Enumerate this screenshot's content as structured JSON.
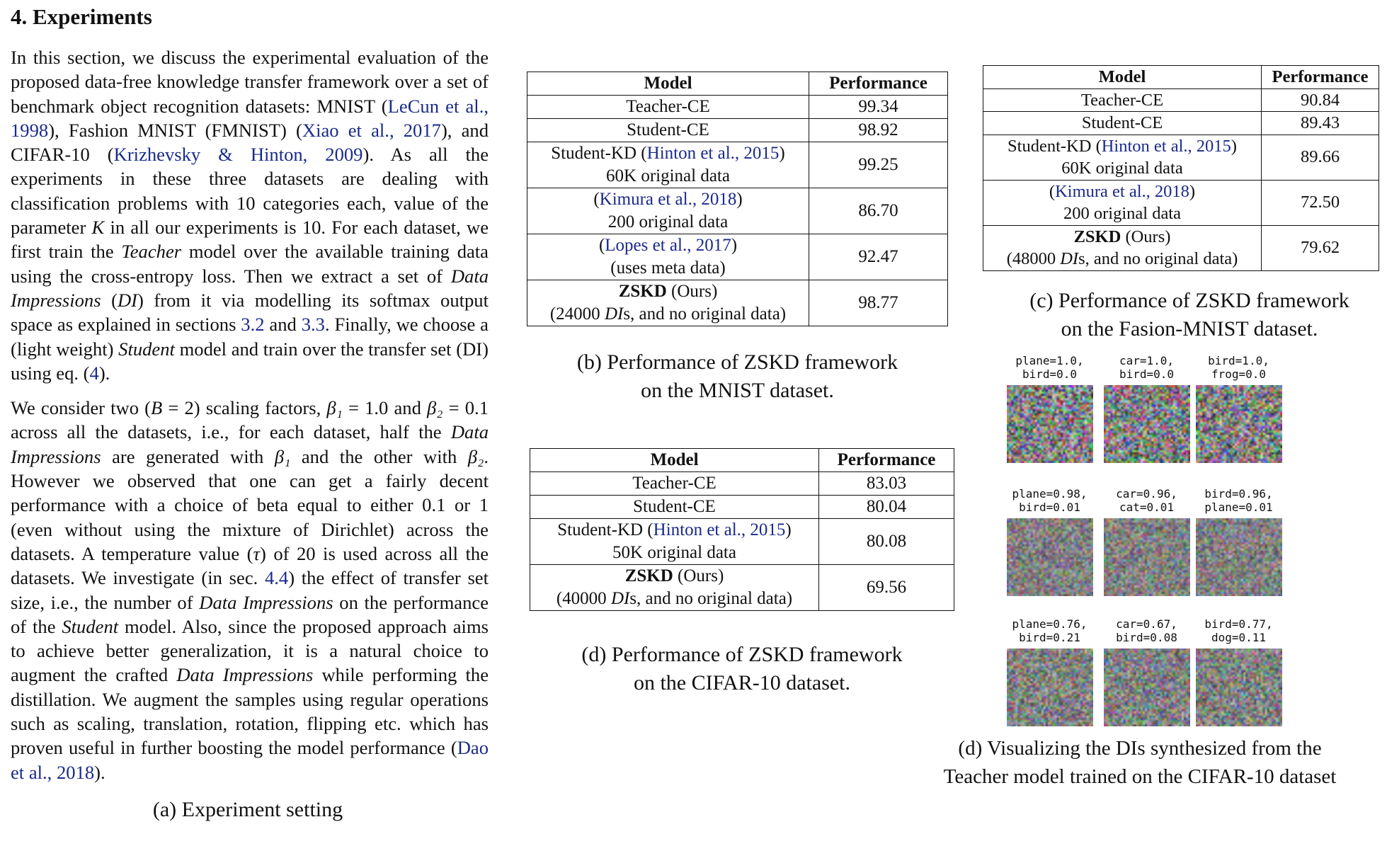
{
  "section": {
    "heading": "4. Experiments"
  },
  "text_column": {
    "p1": [
      {
        "t": "In this section, we discuss the experimental evaluation of the proposed data-free knowledge transfer framework over a set of benchmark object recognition datasets: MNIST ("
      },
      {
        "t": "LeCun et al., 1998",
        "cite": true
      },
      {
        "t": "), Fashion MNIST (FMNIST) ("
      },
      {
        "t": "Xiao et al., 2017",
        "cite": true
      },
      {
        "t": "), and CIFAR-10 ("
      },
      {
        "t": "Krizhevsky & Hinton, 2009",
        "cite": true
      },
      {
        "t": "). As all the experiments in these three datasets are dealing with classification problems with 10 categories each, value of the parameter "
      },
      {
        "t": "K",
        "i": true
      },
      {
        "t": " in all our experiments is 10. For each dataset, we first train the "
      },
      {
        "t": "Teacher",
        "i": true
      },
      {
        "t": " model over the available training data using the cross-entropy loss. Then we extract a set of "
      },
      {
        "t": "Data Impressions",
        "i": true
      },
      {
        "t": " ("
      },
      {
        "t": "DI",
        "i": true
      },
      {
        "t": ") from it via modelling its softmax output space as explained in sections "
      },
      {
        "t": "3.2",
        "cite": true
      },
      {
        "t": " and "
      },
      {
        "t": "3.3",
        "cite": true
      },
      {
        "t": ". Finally, we choose a (light weight) "
      },
      {
        "t": "Student",
        "i": true
      },
      {
        "t": " model and train over the transfer set (DI) using eq. ("
      },
      {
        "t": "4",
        "cite": true
      },
      {
        "t": ")."
      }
    ],
    "p2": [
      {
        "t": "We consider two ("
      },
      {
        "t": "B",
        "i": true
      },
      {
        "t": " = 2) scaling factors, "
      },
      {
        "t": "β₁",
        "i": true
      },
      {
        "t": " = 1.0 and "
      },
      {
        "t": "β₂",
        "i": true
      },
      {
        "t": " = 0.1 across all the datasets, i.e., for each dataset, half the "
      },
      {
        "t": "Data Impressions",
        "i": true
      },
      {
        "t": " are generated with "
      },
      {
        "t": "β₁",
        "i": true
      },
      {
        "t": " and the other with "
      },
      {
        "t": "β₂",
        "i": true
      },
      {
        "t": ". However we observed that one can get a fairly decent performance with a choice of beta equal to either 0.1 or 1 (even without using the mixture of Dirichlet) across the datasets. A temperature value ("
      },
      {
        "t": "τ",
        "i": true
      },
      {
        "t": ") of 20 is used across all the datasets. We investigate (in sec. "
      },
      {
        "t": "4.4",
        "cite": true
      },
      {
        "t": ") the effect of transfer set size, i.e., the number of "
      },
      {
        "t": "Data Impressions",
        "i": true
      },
      {
        "t": " on the performance of the "
      },
      {
        "t": "Student",
        "i": true
      },
      {
        "t": " model. Also, since the proposed approach aims to achieve better generalization, it is a natural choice to augment the crafted "
      },
      {
        "t": "Data Impressions",
        "i": true
      },
      {
        "t": " while performing the distillation. We augment the samples using regular operations such as scaling, translation, rotation, flipping etc. which has proven useful in further boosting the model performance ("
      },
      {
        "t": "Dao et al., 2018",
        "cite": true
      },
      {
        "t": ")."
      }
    ]
  },
  "captions": {
    "a": "(a) Experiment setting",
    "b1": "(b) Performance of ZSKD framework",
    "b2": "on the MNIST dataset.",
    "c1": "(c) Performance of ZSKD framework",
    "c2": "on the Fasion-MNIST dataset.",
    "d1": "(d) Performance of ZSKD framework",
    "d2": "on the CIFAR-10 dataset.",
    "e1": "(d) Visualizing the DIs synthesized from the",
    "e2": "Teacher model trained on the CIFAR-10 dataset"
  },
  "tables": {
    "header": {
      "model": "Model",
      "perf": "Performance"
    },
    "mnist": {
      "teacher": "Teacher-CE",
      "teacher_v": "99.34",
      "student": "Student-CE",
      "student_v": "98.92",
      "kd_a": "Student-KD (",
      "kd_cite": "Hinton et al., 2015",
      "kd_b": ")",
      "kd_data": "60K original data",
      "kd_v": "99.25",
      "kim_a": "(",
      "kim_cite": "Kimura et al., 2018",
      "kim_b": ")",
      "kim_data": "200 original data",
      "kim_v": "86.70",
      "lop_a": "(",
      "lop_cite": "Lopes et al., 2017",
      "lop_b": ")",
      "lop_data": "(uses meta data)",
      "lop_v": "92.47",
      "zskd": "ZSKD",
      "ours": " (Ours)",
      "z_a": "(24000 ",
      "z_di": "DI",
      "z_b": "s, and no original data)",
      "z_v": "98.77"
    },
    "fmnist": {
      "teacher": "Teacher-CE",
      "teacher_v": "90.84",
      "student": "Student-CE",
      "student_v": "89.43",
      "kd_a": "Student-KD (",
      "kd_cite": "Hinton et al., 2015",
      "kd_b": ")",
      "kd_data": "60K original data",
      "kd_v": "89.66",
      "kim_a": "(",
      "kim_cite": "Kimura et al., 2018",
      "kim_b": ")",
      "kim_data": "200 original data",
      "kim_v": "72.50",
      "zskd": "ZSKD",
      "ours": " (Ours)",
      "z_a": "(48000 ",
      "z_di": "DI",
      "z_b": "s, and no original data)",
      "z_v": "79.62"
    },
    "cifar": {
      "teacher": "Teacher-CE",
      "teacher_v": "83.03",
      "student": "Student-CE",
      "student_v": "80.04",
      "kd_a": "Student-KD (",
      "kd_cite": "Hinton et al., 2015",
      "kd_b": ")",
      "kd_data": "50K original data",
      "kd_v": "80.08",
      "zskd": "ZSKD",
      "ours": " (Ours)",
      "z_a": "(40000 ",
      "z_di": "DI",
      "z_b": "s, and no original data)",
      "z_v": "69.56"
    }
  },
  "di_grid": [
    [
      {
        "l1": "plane=1.0,",
        "l2": "bird=0.0"
      },
      {
        "l1": "car=1.0,",
        "l2": "bird=0.0"
      },
      {
        "l1": "bird=1.0,",
        "l2": "frog=0.0"
      }
    ],
    [
      {
        "l1": "plane=0.98,",
        "l2": "bird=0.01"
      },
      {
        "l1": "car=0.96,",
        "l2": "cat=0.01"
      },
      {
        "l1": "bird=0.96,",
        "l2": "plane=0.01"
      }
    ],
    [
      {
        "l1": "plane=0.76,",
        "l2": "bird=0.21"
      },
      {
        "l1": "car=0.67,",
        "l2": "bird=0.08"
      },
      {
        "l1": "bird=0.77,",
        "l2": "dog=0.11"
      }
    ]
  ]
}
